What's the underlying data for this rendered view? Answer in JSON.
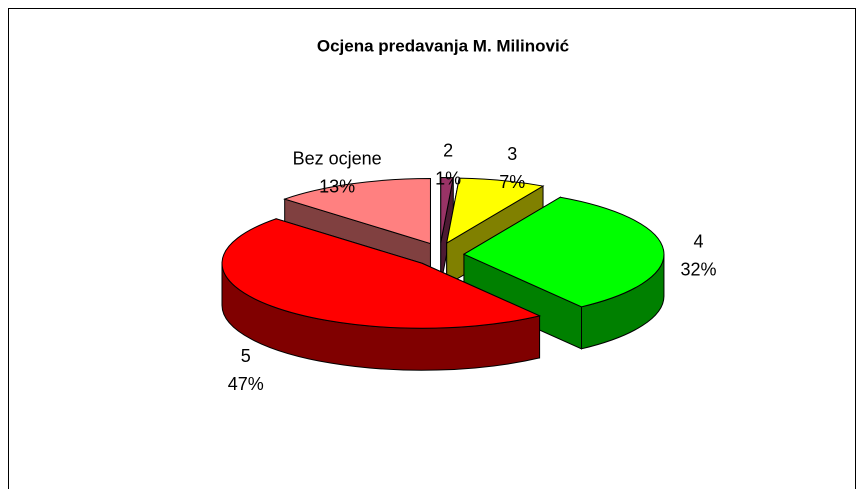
{
  "chart_data": {
    "type": "pie",
    "title": "Ocjena predavanja M. Milinović",
    "categories": [
      "2",
      "3",
      "4",
      "5",
      "Bez ocjene"
    ],
    "values": [
      1,
      7,
      32,
      47,
      13
    ],
    "value_labels": [
      "1%",
      "7%",
      "32%",
      "47%",
      "13%"
    ],
    "colors": [
      "#993366",
      "#ffff00",
      "#00ff00",
      "#ff0000",
      "#ff8080"
    ]
  }
}
